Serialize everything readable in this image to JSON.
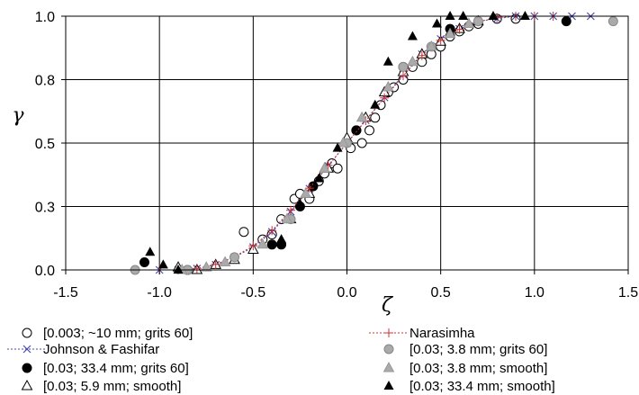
{
  "chart_data": {
    "type": "scatter",
    "xlabel": "ζ",
    "ylabel": "γ",
    "xlim": [
      -1.5,
      1.5
    ],
    "ylim": [
      0.0,
      1.0
    ],
    "x_ticks": [
      "-1.5",
      "-1.0",
      "-0.5",
      "0.0",
      "0.5",
      "1.0",
      "1.5"
    ],
    "y_ticks": [
      "0.0",
      "0.3",
      "0.5",
      "0.8",
      "1.0"
    ],
    "y_tick_values": [
      0.0,
      0.25,
      0.5,
      0.75,
      1.0
    ],
    "grid": true,
    "legend_position": "bottom",
    "series": [
      {
        "name": "[0.003; ~10 mm; grits 60]",
        "marker": "circle-open",
        "points": [
          [
            -0.55,
            0.15
          ],
          [
            -0.45,
            0.12
          ],
          [
            -0.4,
            0.14
          ],
          [
            -0.35,
            0.2
          ],
          [
            -0.28,
            0.28
          ],
          [
            -0.25,
            0.3
          ],
          [
            -0.2,
            0.28
          ],
          [
            -0.15,
            0.35
          ],
          [
            -0.12,
            0.38
          ],
          [
            -0.08,
            0.42
          ],
          [
            -0.05,
            0.4
          ],
          [
            0.02,
            0.48
          ],
          [
            0.05,
            0.55
          ],
          [
            0.08,
            0.5
          ],
          [
            0.12,
            0.55
          ],
          [
            0.15,
            0.6
          ],
          [
            0.18,
            0.65
          ],
          [
            0.22,
            0.7
          ],
          [
            0.25,
            0.72
          ],
          [
            0.3,
            0.75
          ],
          [
            0.35,
            0.8
          ],
          [
            0.4,
            0.82
          ],
          [
            0.45,
            0.85
          ],
          [
            0.5,
            0.88
          ],
          [
            0.55,
            0.92
          ],
          [
            0.6,
            0.94
          ],
          [
            0.65,
            0.96
          ],
          [
            0.7,
            0.97
          ],
          [
            0.8,
            0.99
          ],
          [
            0.9,
            0.99
          ]
        ]
      },
      {
        "name": "Johnson & Fashifar",
        "marker": "cross-line",
        "color": "#4a4aaa",
        "points": [
          [
            -1.0,
            0.0
          ],
          [
            -0.9,
            0.0
          ],
          [
            -0.8,
            0.005
          ],
          [
            -0.7,
            0.02
          ],
          [
            -0.6,
            0.05
          ],
          [
            -0.5,
            0.09
          ],
          [
            -0.4,
            0.15
          ],
          [
            -0.3,
            0.23
          ],
          [
            -0.2,
            0.32
          ],
          [
            -0.1,
            0.41
          ],
          [
            0.0,
            0.5
          ],
          [
            0.1,
            0.59
          ],
          [
            0.2,
            0.68
          ],
          [
            0.3,
            0.77
          ],
          [
            0.4,
            0.85
          ],
          [
            0.5,
            0.91
          ],
          [
            0.6,
            0.95
          ],
          [
            0.7,
            0.98
          ],
          [
            0.8,
            0.99
          ],
          [
            0.9,
            1.0
          ],
          [
            1.0,
            1.0
          ],
          [
            1.1,
            1.0
          ],
          [
            1.2,
            1.0
          ],
          [
            1.3,
            1.0
          ]
        ]
      },
      {
        "name": "[0.03; 33.4 mm; grits 60]",
        "marker": "circle-filled",
        "points": [
          [
            -1.08,
            0.03
          ],
          [
            -0.85,
            0.0
          ],
          [
            -0.4,
            0.1
          ],
          [
            -0.35,
            0.1
          ],
          [
            -0.25,
            0.25
          ],
          [
            -0.18,
            0.33
          ],
          [
            0.05,
            0.55
          ],
          [
            0.3,
            0.8
          ],
          [
            0.55,
            0.95
          ],
          [
            1.17,
            0.98
          ]
        ]
      },
      {
        "name": "[0.03; 5.9 mm; smooth]",
        "marker": "triangle-open",
        "points": [
          [
            -0.9,
            0.01
          ],
          [
            -0.8,
            0.0
          ],
          [
            -0.7,
            0.02
          ],
          [
            -0.6,
            0.04
          ],
          [
            -0.5,
            0.08
          ],
          [
            -0.3,
            0.2
          ],
          [
            -0.2,
            0.3
          ],
          [
            -0.1,
            0.4
          ],
          [
            0.0,
            0.52
          ],
          [
            0.1,
            0.6
          ],
          [
            0.2,
            0.7
          ],
          [
            0.3,
            0.78
          ],
          [
            0.4,
            0.85
          ],
          [
            0.5,
            0.9
          ],
          [
            0.6,
            0.95
          ],
          [
            0.7,
            0.98
          ]
        ]
      },
      {
        "name": "Narasimha",
        "marker": "plus-line",
        "color": "#cc3333",
        "points": [
          [
            -1.0,
            0.0
          ],
          [
            -0.9,
            0.0
          ],
          [
            -0.8,
            0.006
          ],
          [
            -0.7,
            0.022
          ],
          [
            -0.6,
            0.052
          ],
          [
            -0.5,
            0.095
          ],
          [
            -0.4,
            0.155
          ],
          [
            -0.3,
            0.235
          ],
          [
            -0.2,
            0.322
          ],
          [
            -0.1,
            0.412
          ],
          [
            0.0,
            0.5
          ],
          [
            0.1,
            0.588
          ],
          [
            0.2,
            0.678
          ],
          [
            0.3,
            0.765
          ],
          [
            0.4,
            0.845
          ],
          [
            0.5,
            0.905
          ],
          [
            0.6,
            0.948
          ],
          [
            0.7,
            0.978
          ],
          [
            0.8,
            0.994
          ],
          [
            0.9,
            1.0
          ],
          [
            1.0,
            1.0
          ],
          [
            1.1,
            1.0
          ]
        ]
      },
      {
        "name": "[0.03; 3.8 mm; grits 60]",
        "marker": "circle-gray",
        "points": [
          [
            -1.13,
            0.0
          ],
          [
            -0.85,
            0.0
          ],
          [
            -0.6,
            0.05
          ],
          [
            -0.3,
            0.2
          ],
          [
            0.0,
            0.5
          ],
          [
            0.3,
            0.8
          ],
          [
            0.45,
            0.88
          ],
          [
            0.7,
            0.98
          ],
          [
            1.42,
            0.98
          ]
        ]
      },
      {
        "name": "[0.03; 3.8 mm; smooth]",
        "marker": "triangle-gray",
        "points": [
          [
            -0.88,
            0.0
          ],
          [
            -0.75,
            0.01
          ],
          [
            -0.65,
            0.03
          ],
          [
            -0.45,
            0.1
          ],
          [
            -0.32,
            0.2
          ],
          [
            -0.22,
            0.3
          ],
          [
            -0.12,
            0.4
          ],
          [
            -0.02,
            0.5
          ],
          [
            0.08,
            0.6
          ],
          [
            0.22,
            0.72
          ],
          [
            0.35,
            0.82
          ],
          [
            0.45,
            0.88
          ],
          [
            0.55,
            0.93
          ],
          [
            0.65,
            0.97
          ]
        ]
      },
      {
        "name": "[0.03; 33.4 mm; smooth]",
        "marker": "triangle-filled",
        "points": [
          [
            -1.05,
            0.07
          ],
          [
            -0.98,
            0.02
          ],
          [
            -0.9,
            0.0
          ],
          [
            -0.35,
            0.12
          ],
          [
            -0.25,
            0.26
          ],
          [
            -0.15,
            0.36
          ],
          [
            -0.05,
            0.48
          ],
          [
            0.15,
            0.65
          ],
          [
            0.22,
            0.82
          ],
          [
            0.35,
            0.92
          ],
          [
            0.48,
            0.97
          ],
          [
            0.55,
            1.0
          ],
          [
            0.62,
            1.0
          ],
          [
            0.78,
            1.0
          ],
          [
            0.95,
            1.0
          ]
        ]
      }
    ]
  }
}
